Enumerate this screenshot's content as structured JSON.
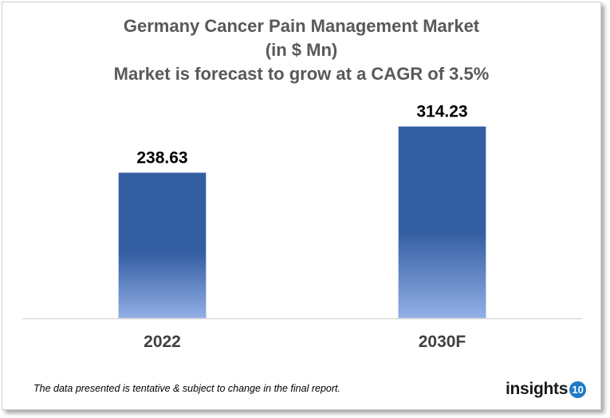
{
  "chart_data": {
    "type": "bar",
    "title": "Germany Cancer Pain Management Market",
    "subtitle": "(in $ Mn)",
    "subtitle2": "Market is forecast to grow at a CAGR of 3.5%",
    "categories": [
      "2022",
      "2030F"
    ],
    "values": [
      238.63,
      314.23
    ],
    "data_labels": [
      "238.63",
      "314.23"
    ],
    "xlabel": "",
    "ylabel": "",
    "ylim": [
      0,
      350
    ],
    "grid": false,
    "legend": "none",
    "bar_gradient": [
      "#345ea2",
      "#345ea2",
      "#93afe6"
    ]
  },
  "footer": {
    "note": "The data presented is tentative & subject to change in the final report.",
    "logo_text": "insights",
    "logo_badge": "10"
  },
  "colors": {
    "title": "#595959",
    "logo_badge": "#1f7ac4"
  }
}
